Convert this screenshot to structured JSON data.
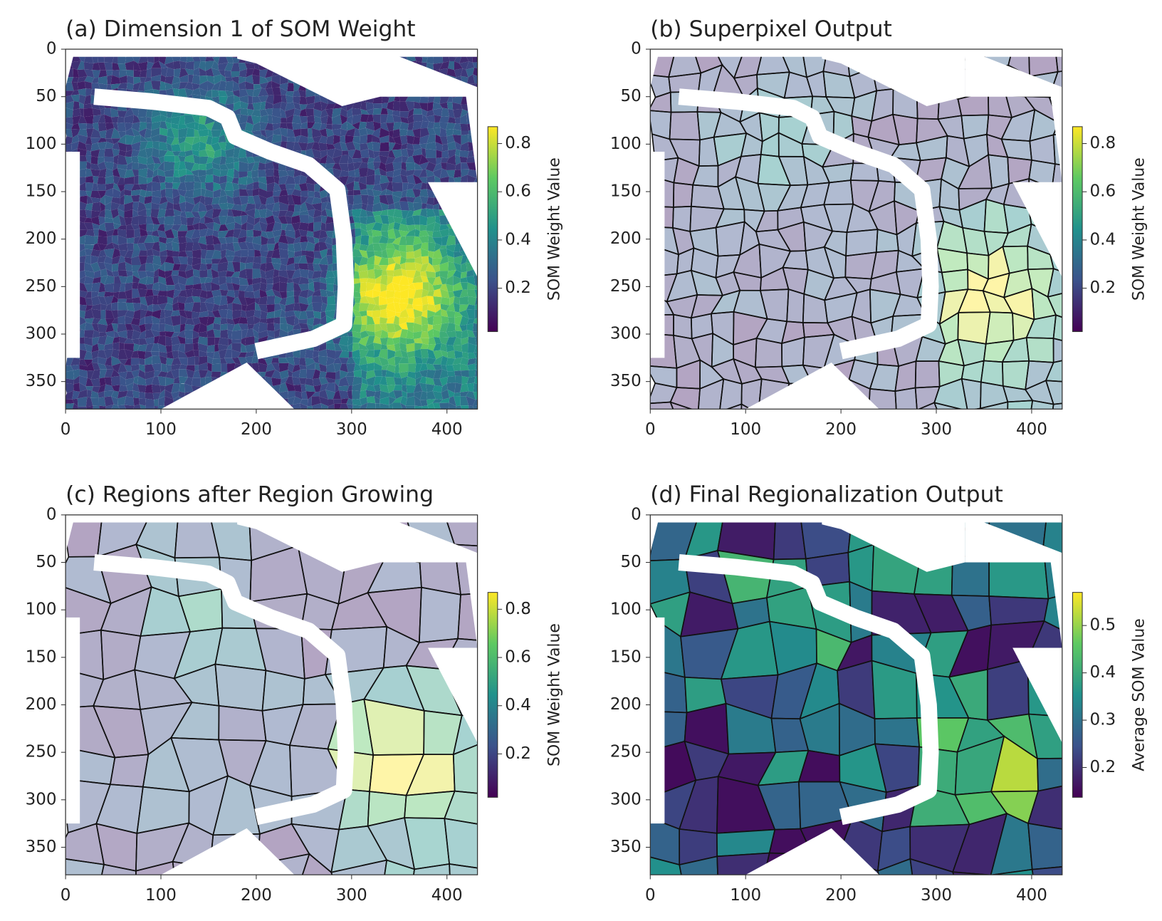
{
  "chart_data": [
    {
      "type": "image",
      "title": "(a) Dimension 1 of SOM Weight",
      "xlim": [
        0,
        432
      ],
      "ylim": [
        379,
        0
      ],
      "xticks": [
        0,
        100,
        200,
        300,
        400
      ],
      "yticks": [
        0,
        50,
        100,
        150,
        200,
        250,
        300,
        350
      ],
      "colorbar": {
        "label": "SOM Weight Value",
        "lim": [
          0.02,
          0.87
        ],
        "ticks": [
          0.2,
          0.4,
          0.6,
          0.8
        ],
        "colormap": "viridis"
      }
    },
    {
      "type": "image",
      "title": "(b) Superpixel Output",
      "xlim": [
        0,
        432
      ],
      "ylim": [
        379,
        0
      ],
      "xticks": [
        0,
        100,
        200,
        300,
        400
      ],
      "yticks": [
        0,
        50,
        100,
        150,
        200,
        250,
        300,
        350
      ],
      "colorbar": {
        "label": "SOM Weight Value",
        "lim": [
          0.02,
          0.87
        ],
        "ticks": [
          0.2,
          0.4,
          0.6,
          0.8
        ],
        "colormap": "viridis"
      }
    },
    {
      "type": "image",
      "title": "(c) Regions after Region Growing",
      "xlim": [
        0,
        432
      ],
      "ylim": [
        379,
        0
      ],
      "xticks": [
        0,
        100,
        200,
        300,
        400
      ],
      "yticks": [
        0,
        50,
        100,
        150,
        200,
        250,
        300,
        350
      ],
      "colorbar": {
        "label": "SOM Weight Value",
        "lim": [
          0.02,
          0.87
        ],
        "ticks": [
          0.2,
          0.4,
          0.6,
          0.8
        ],
        "colormap": "viridis"
      }
    },
    {
      "type": "image",
      "title": "(d) Final Regionalization Output",
      "xlim": [
        0,
        432
      ],
      "ylim": [
        379,
        0
      ],
      "xticks": [
        0,
        100,
        200,
        300,
        400
      ],
      "yticks": [
        0,
        50,
        100,
        150,
        200,
        250,
        300,
        350
      ],
      "colorbar": {
        "label": "Average SOM Value",
        "lim": [
          0.137,
          0.57
        ],
        "ticks": [
          0.2,
          0.3,
          0.4,
          0.5
        ],
        "colormap": "viridis"
      }
    }
  ]
}
